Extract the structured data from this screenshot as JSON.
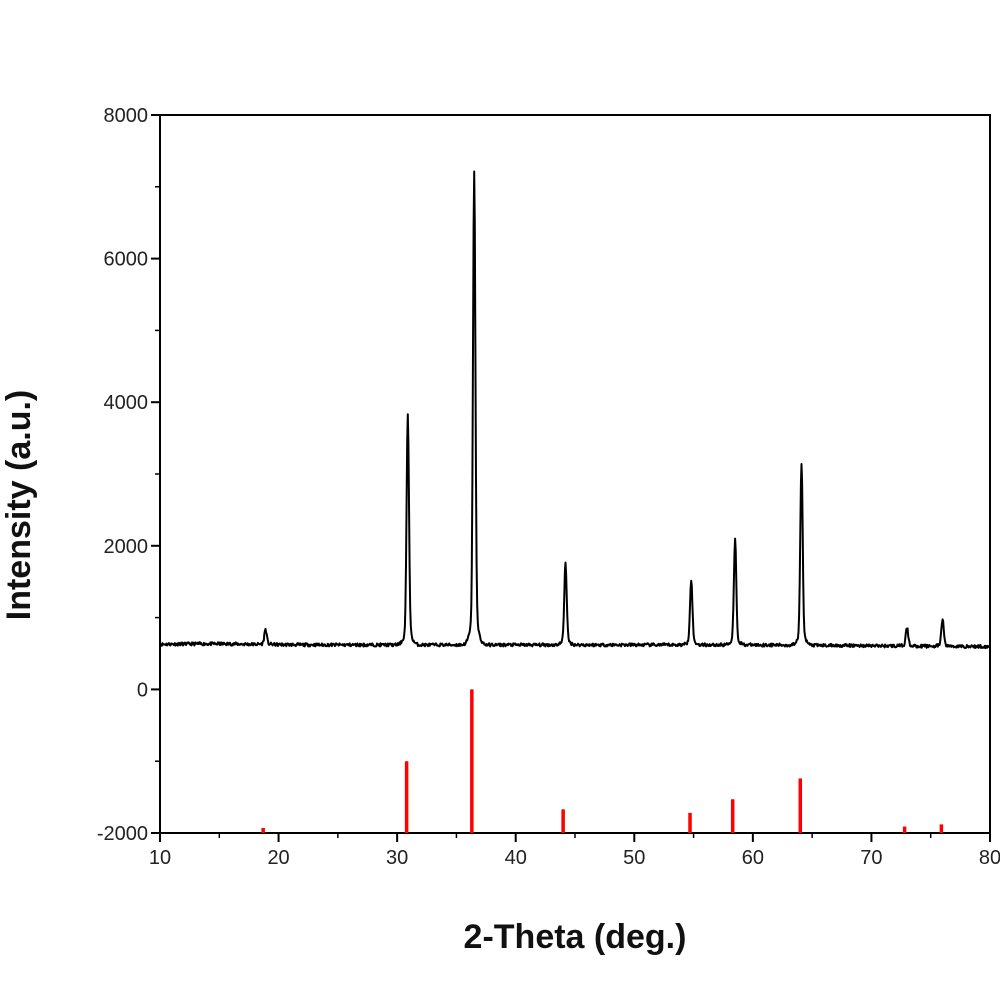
{
  "chart_data": {
    "type": "line",
    "title": "",
    "xlabel": "2-Theta (deg.)",
    "ylabel": "Intensity (a.u.)",
    "xlim": [
      10,
      80
    ],
    "ylim": [
      -2000,
      8000
    ],
    "x_ticks": [
      10,
      20,
      30,
      40,
      50,
      60,
      70,
      80
    ],
    "x_tick_labels": [
      "10",
      "20",
      "30",
      "40",
      "50",
      "60",
      "70",
      "80"
    ],
    "y_ticks": [
      -2000,
      0,
      2000,
      4000,
      6000,
      8000
    ],
    "y_tick_labels": [
      "-2000",
      "0",
      "2000",
      "4000",
      "6000",
      "8000"
    ],
    "grid": false,
    "legend": "none",
    "series": [
      {
        "style": "line",
        "color": "#000000",
        "baseline": 620,
        "x": [
          10,
          18.9,
          30.9,
          36.5,
          44.2,
          54.8,
          58.5,
          64.1,
          73.0,
          76.0,
          80
        ],
        "y": [
          620,
          820,
          3630,
          6850,
          1700,
          1480,
          2010,
          3020,
          860,
          980,
          600
        ]
      },
      {
        "style": "sticks",
        "color": "#ff0000",
        "baseline": -2000,
        "x": [
          18.7,
          30.8,
          36.3,
          44.0,
          54.7,
          58.3,
          64.0,
          72.8,
          75.9
        ],
        "y": [
          -1930,
          -1000,
          0,
          -1670,
          -1720,
          -1530,
          -1240,
          -1910,
          -1880
        ]
      }
    ]
  }
}
